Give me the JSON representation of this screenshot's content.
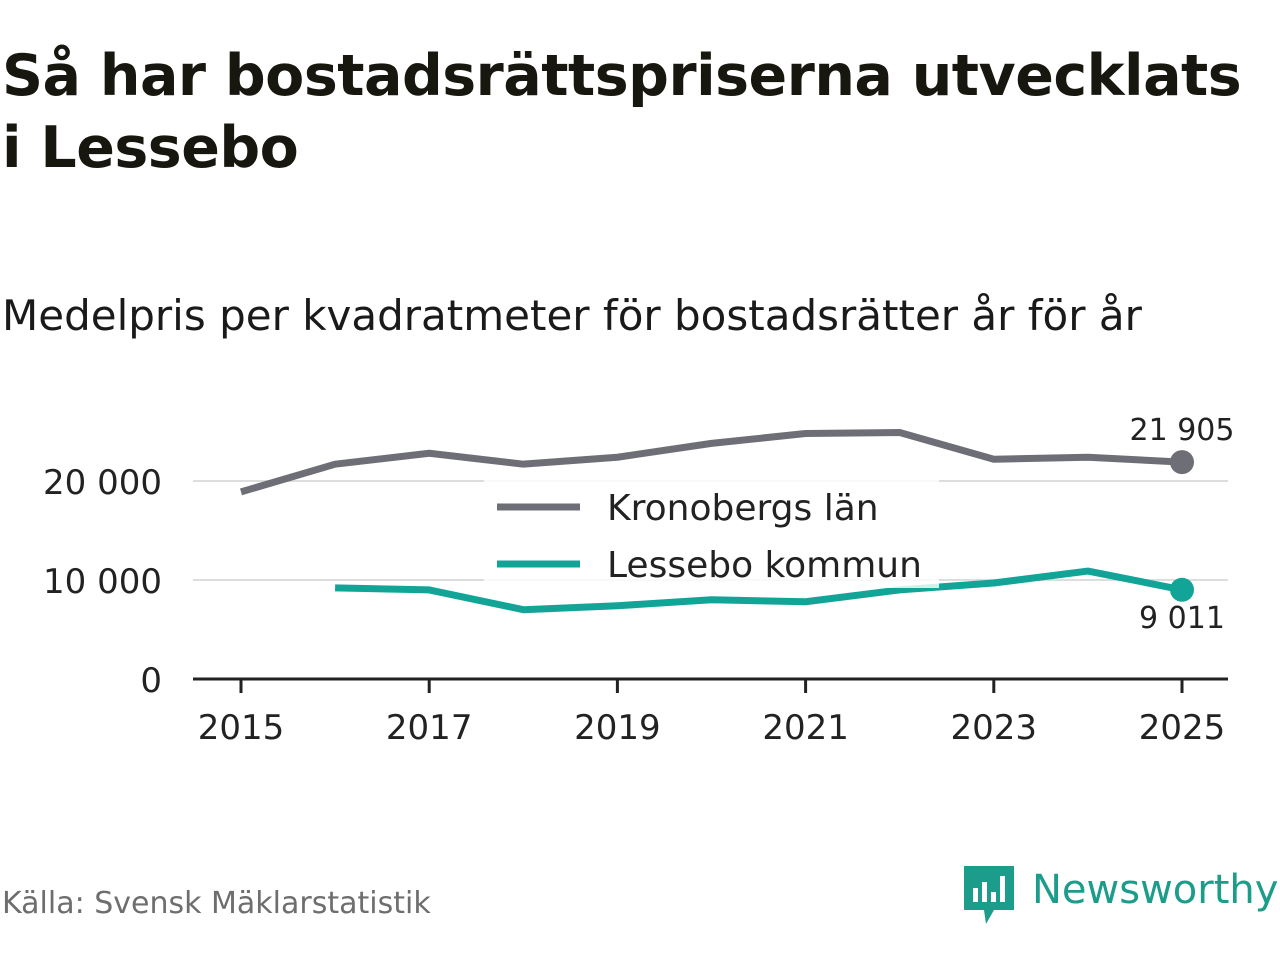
{
  "title": "Så har bostadsrättspriserna utvecklats i Lessebo",
  "subtitle": "Medelpris per kvadratmeter för bostadsrätter år för år",
  "source": "Källa: Svensk Mäklarstatistik",
  "brand": "Newsworthy",
  "colors": {
    "kronoberg": "#6e6e76",
    "lessebo": "#12a597",
    "grid": "#dddddd",
    "axis": "#222222",
    "brand": "#1c9c8a"
  },
  "chart_data": {
    "type": "line",
    "title": "Så har bostadsrättspriserna utvecklats i Lessebo",
    "subtitle": "Medelpris per kvadratmeter för bostadsrätter år för år",
    "xlabel": "",
    "ylabel": "",
    "xlim": [
      2015,
      2025
    ],
    "ylim": [
      0,
      25000
    ],
    "x_ticks": [
      "2015",
      "2017",
      "2019",
      "2021",
      "2023",
      "2025"
    ],
    "y_ticks": [
      {
        "value": 0,
        "label": "0"
      },
      {
        "value": 10000,
        "label": "10 000"
      },
      {
        "value": 20000,
        "label": "20 000"
      }
    ],
    "legend": {
      "position": "center",
      "entries": [
        "Kronobergs län",
        "Lessebo kommun"
      ]
    },
    "series": [
      {
        "name": "Kronobergs län",
        "x": [
          2015,
          2016,
          2017,
          2018,
          2019,
          2020,
          2021,
          2022,
          2023,
          2024,
          2025
        ],
        "values": [
          18900,
          21700,
          22800,
          21700,
          22400,
          23800,
          24800,
          24900,
          22200,
          22400,
          21905
        ],
        "end_label": "21 905"
      },
      {
        "name": "Lessebo kommun",
        "x": [
          2016,
          2017,
          2018,
          2019,
          2020,
          2021,
          2022,
          2023,
          2024,
          2025
        ],
        "values": [
          9200,
          9000,
          7000,
          7400,
          8000,
          7800,
          9000,
          9700,
          10900,
          9011
        ],
        "end_label": "9 011"
      }
    ]
  }
}
